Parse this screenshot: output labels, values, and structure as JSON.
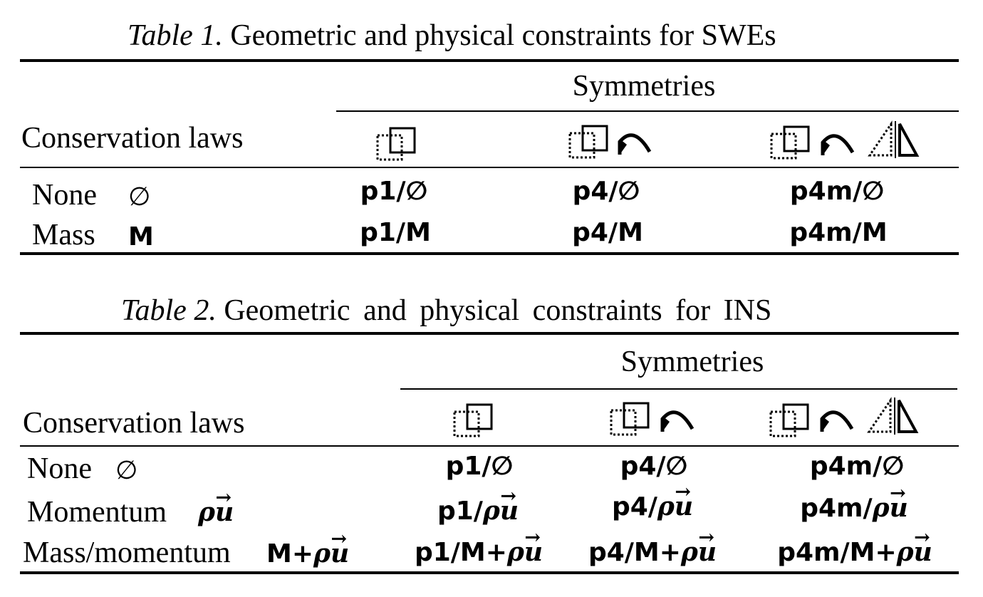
{
  "tables": [
    {
      "caption_label": "Table 1.",
      "caption_text": "Geometric and physical constraints for SWEs",
      "symmetries_header": "Symmetries",
      "laws_header": "Conservation laws",
      "symmetry_icons": [
        [
          "translation-icon"
        ],
        [
          "translation-icon",
          "rotation-icon"
        ],
        [
          "translation-icon",
          "rotation-icon",
          "reflection-icon"
        ]
      ],
      "rows": [
        {
          "law": "None",
          "law_symbol": "∅",
          "cells": [
            "p1/∅",
            "p4/∅",
            "p4m/∅"
          ]
        },
        {
          "law": "Mass",
          "law_symbol": "M",
          "cells": [
            "p1/M",
            "p4/M",
            "p4m/M"
          ]
        }
      ]
    },
    {
      "caption_label": "Table 2.",
      "caption_text": "Geometric and physical constraints for INS",
      "symmetries_header": "Symmetries",
      "laws_header": "Conservation laws",
      "symmetry_icons": [
        [
          "translation-icon"
        ],
        [
          "translation-icon",
          "rotation-icon"
        ],
        [
          "translation-icon",
          "rotation-icon",
          "reflection-icon"
        ]
      ],
      "rows": [
        {
          "law": "None",
          "law_symbol": "∅",
          "cells": [
            "p1/∅",
            "p4/∅",
            "p4m/∅"
          ]
        },
        {
          "law": "Momentum",
          "law_symbol": "ρu⃗",
          "cells": [
            "p1/ρu⃗",
            "p4/ρu⃗",
            "p4m/ρu⃗"
          ]
        },
        {
          "law": "Mass/momentum",
          "law_symbol": "M+ρu⃗",
          "cells": [
            "p1/M+ρu⃗",
            "p4/M+ρu⃗",
            "p4m/M+ρu⃗"
          ]
        }
      ]
    }
  ]
}
